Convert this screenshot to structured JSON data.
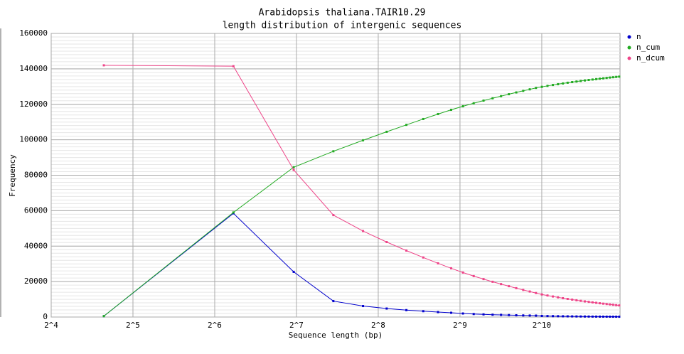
{
  "chart_data": {
    "type": "line",
    "title": "Arabidopsis thaliana.TAIR10.29",
    "subtitle": "length distribution of intergenic sequences",
    "x_label": "Sequence length (bp)",
    "y_label": "Frequency",
    "x_scale": "log2",
    "grid": true,
    "legend": "top-right",
    "xlim": [
      16,
      1988
    ],
    "ylim": [
      0,
      160000
    ],
    "xticks": [
      {
        "value": 16,
        "label": "2^4"
      },
      {
        "value": 32,
        "label": "2^5"
      },
      {
        "value": 64,
        "label": "2^6"
      },
      {
        "value": 128,
        "label": "2^7"
      },
      {
        "value": 256,
        "label": "2^8"
      },
      {
        "value": 512,
        "label": "2^9"
      },
      {
        "value": 1024,
        "label": "2^10"
      }
    ],
    "yticks": [
      0,
      20000,
      40000,
      60000,
      80000,
      100000,
      120000,
      140000,
      160000
    ],
    "x": [
      25,
      75,
      125,
      175,
      225,
      275,
      325,
      375,
      425,
      475,
      525,
      575,
      625,
      675,
      725,
      775,
      825,
      875,
      925,
      975,
      1025,
      1075,
      1125,
      1175,
      1225,
      1275,
      1325,
      1375,
      1425,
      1475,
      1525,
      1575,
      1625,
      1675,
      1725,
      1775,
      1825,
      1875,
      1925,
      1975
    ],
    "series": [
      {
        "name": "n",
        "color": "#0000cc",
        "values": [
          500,
          58500,
          25500,
          9000,
          6200,
          4800,
          3900,
          3300,
          2800,
          2400,
          2000,
          1700,
          1500,
          1300,
          1200,
          1100,
          1000,
          900,
          850,
          800,
          600,
          550,
          500,
          460,
          420,
          390,
          360,
          330,
          310,
          290,
          270,
          250,
          240,
          230,
          220,
          210,
          200,
          190,
          180,
          170
        ]
      },
      {
        "name": "n_cum",
        "color": "#22aa22",
        "values": [
          500,
          59000,
          84500,
          93500,
          99700,
          104500,
          108400,
          111700,
          114500,
          116900,
          118900,
          120600,
          122100,
          123400,
          124600,
          125700,
          126700,
          127600,
          128450,
          129250,
          129850,
          130400,
          130900,
          131360,
          131780,
          132170,
          132530,
          132860,
          133170,
          133460,
          133730,
          133980,
          134220,
          134450,
          134670,
          134880,
          135080,
          135270,
          135450,
          135620
        ]
      },
      {
        "name": "n_dcum",
        "color": "#ee4488",
        "values": [
          142000,
          141500,
          83000,
          57500,
          48500,
          42300,
          37500,
          33600,
          30300,
          27500,
          25100,
          23100,
          21400,
          19900,
          18600,
          17400,
          16300,
          15300,
          14400,
          13550,
          12750,
          12150,
          11600,
          11100,
          10640,
          10220,
          9830,
          9470,
          9140,
          8830,
          8540,
          8270,
          8020,
          7780,
          7550,
          7330,
          7120,
          6920,
          6730,
          6550
        ]
      }
    ]
  }
}
